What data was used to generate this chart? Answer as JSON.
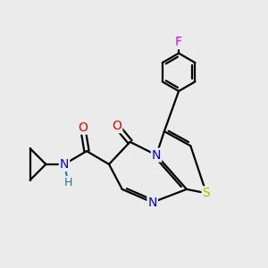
{
  "background_color": "#ebebeb",
  "bond_color": "#000000",
  "atom_colors": {
    "N": "#0000ee",
    "O": "#ee0000",
    "S": "#bbbb00",
    "F": "#ee00ee",
    "H": "#008888",
    "C": "#000000"
  },
  "font_size": 10,
  "line_width": 1.6,
  "figsize": [
    3.0,
    3.0
  ],
  "dpi": 100
}
